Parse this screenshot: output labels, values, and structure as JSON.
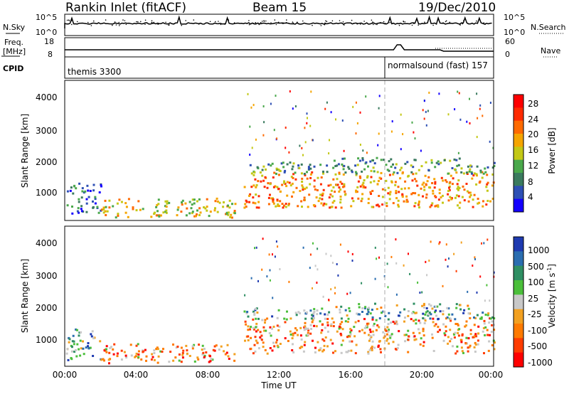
{
  "header": {
    "station": "Rankin Inlet (fitACF)",
    "beam": "Beam 15",
    "date": "19/Dec/2010"
  },
  "noise_panel": {
    "left_label": "N.Sky",
    "left_ticks": [
      "10^5",
      "10^0"
    ],
    "right_label": "N.Search",
    "right_ticks": [
      "10^5",
      "10^0"
    ]
  },
  "freq_panel": {
    "left_label_1": "Freq.",
    "left_label_2": "[MHz]",
    "left_ticks": [
      "18",
      "8"
    ],
    "right_label": "Nave",
    "right_ticks": [
      "60",
      "0"
    ]
  },
  "cpid_panel": {
    "label": "CPID",
    "segments": [
      {
        "name": "themis 3300",
        "start_hour": 0.0
      },
      {
        "name": "normalsound (fast) 157",
        "start_hour": 18.0
      }
    ]
  },
  "x_axis": {
    "label": "Time UT",
    "ticks": [
      "00:00",
      "04:00",
      "08:00",
      "12:00",
      "16:00",
      "20:00",
      "00:00"
    ],
    "range_hours": [
      0,
      24
    ]
  },
  "power_panel": {
    "ylabel": "Slant Range [km]",
    "yticks": [
      "1000",
      "2000",
      "3000",
      "4000"
    ],
    "colorbar_label": "Power [dB]",
    "colorbar_ticks": [
      "28",
      "24",
      "20",
      "16",
      "12",
      "8",
      "4"
    ],
    "colors": [
      "#1400ff",
      "#2d4fb4",
      "#3a7a5e",
      "#4aa84b",
      "#c3c816",
      "#f5a500",
      "#ff6a00",
      "#ff2a00",
      "#ff0000"
    ]
  },
  "velocity_panel": {
    "ylabel": "Slant Range [km]",
    "yticks": [
      "1000",
      "2000",
      "3000",
      "4000"
    ],
    "colorbar_label": "Velocity  [m s",
    "colorbar_sup": "-1",
    "colorbar_label_end": "]",
    "colorbar_ticks": [
      "1000",
      "500",
      "100",
      "25",
      "-25",
      "-100",
      "-500",
      "-1000"
    ],
    "colors": [
      "#1e3ab0",
      "#2a6db0",
      "#2f8f63",
      "#4bbf3a",
      "#c8c8c8",
      "#f2a020",
      "#ff7a00",
      "#ff3c00",
      "#ff0000"
    ]
  },
  "chart_data": {
    "type": "heatmap",
    "x": {
      "unit": "hours UT",
      "range": [
        0,
        24
      ]
    },
    "y": {
      "unit": "km",
      "range": [
        180,
        4500
      ]
    },
    "scatter_bands": [
      {
        "x": [
          0.0,
          2.0
        ],
        "y": [
          400,
          1350
        ],
        "power": "low-mid",
        "velocity": "mixed"
      },
      {
        "x": [
          2.0,
          9.5
        ],
        "y": [
          300,
          900
        ],
        "power": "mid-high",
        "velocity": "negative"
      },
      {
        "x": [
          10.0,
          24.0
        ],
        "y": [
          600,
          1700
        ],
        "power": "high",
        "velocity": "negative"
      },
      {
        "x": [
          10.0,
          24.0
        ],
        "y": [
          1650,
          2000
        ],
        "power": "mid",
        "velocity": "mixed"
      },
      {
        "x": [
          15.0,
          22.5
        ],
        "y": [
          2000,
          2150
        ],
        "power": "mid",
        "velocity": "small"
      }
    ],
    "power_range_db": [
      0,
      30
    ],
    "velocity_range_ms": [
      -1000,
      1000
    ],
    "cpid_change_hour": 18.0
  }
}
